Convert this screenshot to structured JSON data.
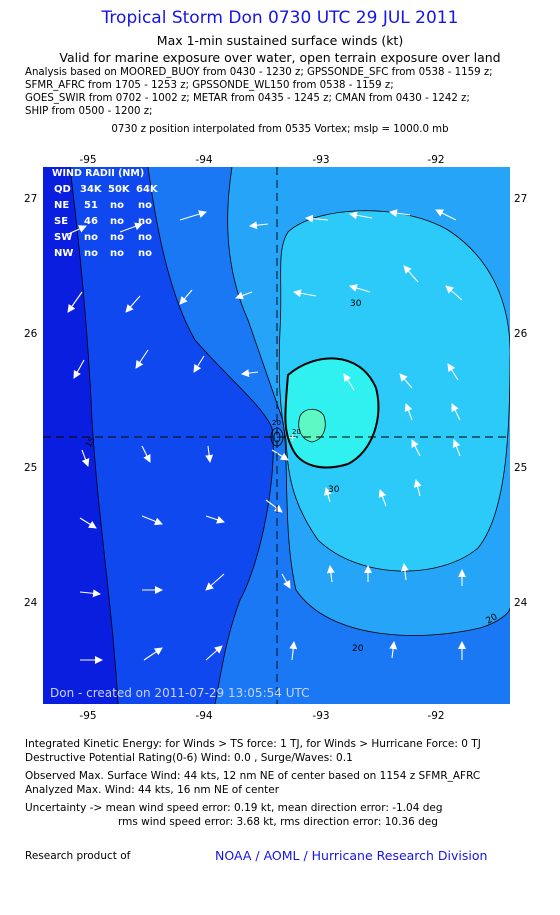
{
  "header": {
    "title": "Tropical Storm Don 0730 UTC 29 JUL 2011",
    "subtitle1": "Max 1-min sustained surface winds (kt)",
    "subtitle2": "Valid for marine exposure over water, open terrain exposure over land",
    "analysis_lines": [
      "Analysis based on MOORED_BUOY from 0430 - 1230 z; GPSSONDE_SFC from 0538 - 1159 z;",
      "SFMR_AFRC from 1705 - 1253 z; GPSSONDE_WL150 from 0538 - 1159 z;",
      "GOES_SWIR from 0702 - 1002 z; METAR from 0435 - 1245 z; CMAN from 0430 - 1242 z;",
      "SHIP from 0500 - 1200 z;"
    ],
    "position_note": "0730 z position interpolated from 0535 Vortex; mslp = 1000.0 mb"
  },
  "map": {
    "lon_labels": [
      "-95",
      "-94",
      "-93",
      "-92"
    ],
    "lat_labels": [
      "27",
      "26",
      "25",
      "24"
    ],
    "contour_labels": [
      "30",
      "30",
      "20",
      "20",
      "20",
      "15",
      "20"
    ],
    "wind_radii": {
      "title": "WIND RADII (NM)",
      "header": [
        "QD",
        "34K",
        "50K",
        "64K"
      ],
      "rows": [
        [
          "NE",
          "51",
          "no",
          "no"
        ],
        [
          "SE",
          "46",
          "no",
          "no"
        ],
        [
          "SW",
          "no",
          "no",
          "no"
        ],
        [
          "NW",
          "no",
          "no",
          "no"
        ]
      ]
    },
    "created": "Don - created on 2011-07-29 13:05:54 UTC",
    "colors": {
      "band_under15": "#0a1ee0",
      "band_15_20": "#1048f0",
      "band_20_25": "#1a78f4",
      "band_25_30": "#26a4f8",
      "band_30_34": "#2ccaf8",
      "band_34_40": "#30f0f0",
      "band_40plus": "#5ef8c4",
      "frame": "#000000"
    }
  },
  "footer": {
    "ike": "Integrated Kinetic Energy:  for Winds > TS force: 1 TJ,  for Winds > Hurricane Force: 0 TJ",
    "dpr": "Destructive Potential Rating(0-6)   Wind: 0.0 , Surge/Waves: 0.1",
    "observed": "Observed Max. Surface Wind: 44 kts, 12 nm NE of center based on 1154 z SFMR_AFRC",
    "analyzed": "Analyzed Max. Wind: 44 kts, 16 nm NE of center",
    "uncertainty1": "Uncertainty -> mean wind speed error: 0.19 kt,   mean direction error:  -1.04 deg",
    "uncertainty2": "rms wind speed error: 3.68 kt,   rms direction error: 10.36 deg",
    "research": "Research product of",
    "credit": "NOAA / AOML / Hurricane Research Division"
  }
}
